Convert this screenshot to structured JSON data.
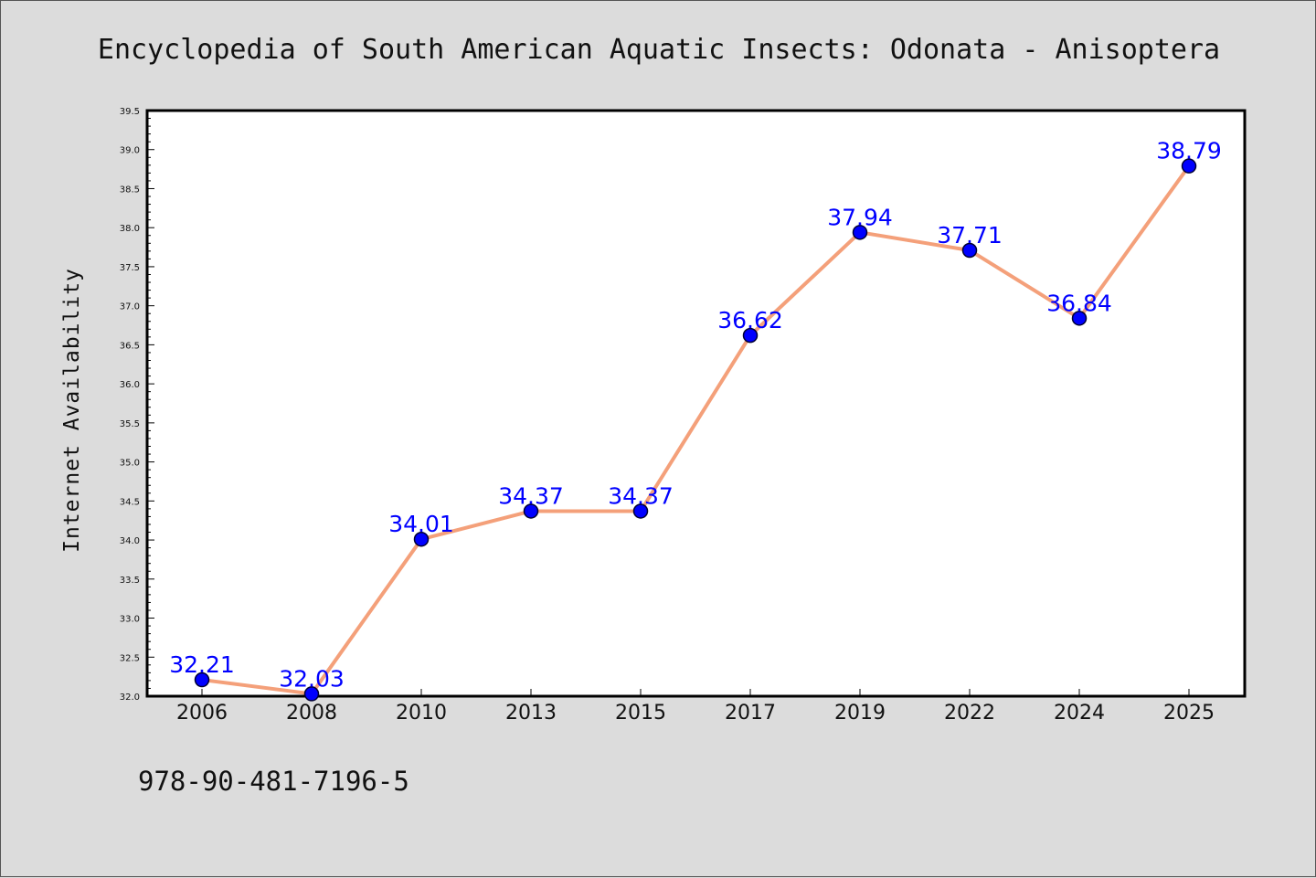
{
  "chart_data": {
    "type": "line",
    "title": "Encyclopedia of South American Aquatic Insects: Odonata - Anisoptera",
    "xlabel": "",
    "ylabel": "Internet Availability",
    "categories": [
      "2006",
      "2008",
      "2010",
      "2013",
      "2015",
      "2017",
      "2019",
      "2022",
      "2024",
      "2025"
    ],
    "series": [
      {
        "values": [
          32.21,
          32.03,
          34.01,
          34.37,
          34.37,
          36.62,
          37.94,
          37.71,
          36.84,
          38.79
        ],
        "data_labels": [
          "32.21",
          "32.03",
          "34.01",
          "34.37",
          "34.37",
          "36.62",
          "37.94",
          "37.71",
          "36.84",
          "38.79"
        ]
      }
    ],
    "ylim": [
      32.0,
      39.5
    ],
    "yticks": [
      "32.0",
      "32.5",
      "33.0",
      "33.5",
      "34.0",
      "34.5",
      "35.0",
      "35.5",
      "36.0",
      "36.5",
      "37.0",
      "37.5",
      "38.0",
      "38.5",
      "39.0",
      "39.5"
    ],
    "grid": false,
    "colors": {
      "line": "#f4a07a",
      "marker_fill": "#0000ff",
      "marker_edge": "#000033",
      "data_label": "#0000ff",
      "background": "#dcdcdc",
      "plot_area": "#ffffff"
    }
  },
  "footer": {
    "isbn": "978-90-481-7196-5"
  }
}
